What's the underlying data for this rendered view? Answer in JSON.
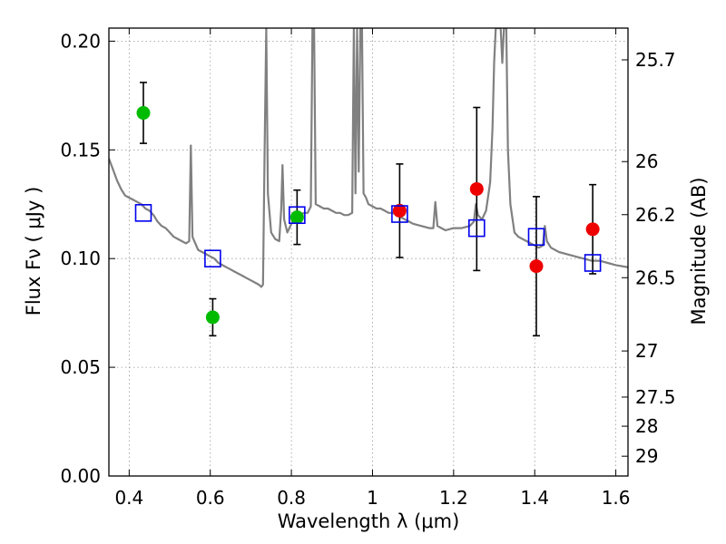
{
  "chart_data": {
    "type": "scatter",
    "xlabel": "Wavelength  λ (μm)",
    "ylabel": "Flux  Fν  ( μJy )",
    "ylabel_right": "Magnitude (AB)",
    "xlim": [
      0.35,
      1.63
    ],
    "ylim": [
      0.0,
      0.206
    ],
    "grid": true,
    "x_ticks": [
      0.4,
      0.6,
      0.8,
      1.0,
      1.2,
      1.4,
      1.6
    ],
    "x_tick_labels": [
      "0.4",
      "0.6",
      "0.8",
      "1",
      "1.2",
      "1.4",
      "1.6"
    ],
    "y_ticks": [
      0.0,
      0.05,
      0.1,
      0.15,
      0.2
    ],
    "y_tick_labels": [
      "0.00",
      "0.05",
      "0.10",
      "0.15",
      "0.20"
    ],
    "right_ticks": [
      {
        "label": "25.7",
        "flux": 0.1914
      },
      {
        "label": "26",
        "flux": 0.1446
      },
      {
        "label": "26.2",
        "flux": 0.1202
      },
      {
        "label": "26.5",
        "flux": 0.0912
      },
      {
        "label": "27",
        "flux": 0.0575
      },
      {
        "label": "27.5",
        "flux": 0.0363
      },
      {
        "label": "28",
        "flux": 0.0229
      },
      {
        "label": "29",
        "flux": 0.0091
      }
    ],
    "colors": {
      "spectrum": "#808080",
      "green": "#00bb00",
      "red": "#ee0000",
      "model": "#0000ee",
      "errorbar": "#000000",
      "grid": "#999999"
    },
    "series": [
      {
        "marker": "circle",
        "color": "#00bb00",
        "points": [
          {
            "x": 0.435,
            "y": 0.167,
            "err": 0.014
          },
          {
            "x": 0.606,
            "y": 0.073,
            "err": 0.0085
          },
          {
            "x": 0.814,
            "y": 0.119,
            "err": 0.0125
          }
        ]
      },
      {
        "marker": "circle",
        "color": "#ee0000",
        "points": [
          {
            "x": 1.067,
            "y": 0.122,
            "err": 0.0215
          },
          {
            "x": 1.257,
            "y": 0.132,
            "err": 0.0375
          },
          {
            "x": 1.404,
            "y": 0.0965,
            "err": 0.032
          },
          {
            "x": 1.543,
            "y": 0.1135,
            "err": 0.0205
          }
        ]
      },
      {
        "marker": "square",
        "color": "#0000ee",
        "points": [
          {
            "x": 0.435,
            "y": 0.121
          },
          {
            "x": 0.606,
            "y": 0.1
          },
          {
            "x": 0.814,
            "y": 0.12
          },
          {
            "x": 1.067,
            "y": 0.1205
          },
          {
            "x": 1.257,
            "y": 0.114
          },
          {
            "x": 1.404,
            "y": 0.11
          },
          {
            "x": 1.543,
            "y": 0.098
          }
        ]
      }
    ],
    "spectrum": [
      [
        0.35,
        0.146
      ],
      [
        0.36,
        0.141
      ],
      [
        0.37,
        0.136
      ],
      [
        0.38,
        0.132
      ],
      [
        0.39,
        0.129
      ],
      [
        0.4,
        0.128
      ],
      [
        0.41,
        0.127
      ],
      [
        0.42,
        0.126
      ],
      [
        0.43,
        0.125
      ],
      [
        0.44,
        0.123
      ],
      [
        0.45,
        0.122
      ],
      [
        0.46,
        0.12
      ],
      [
        0.47,
        0.117
      ],
      [
        0.48,
        0.115
      ],
      [
        0.49,
        0.114
      ],
      [
        0.5,
        0.112
      ],
      [
        0.51,
        0.11
      ],
      [
        0.52,
        0.109
      ],
      [
        0.53,
        0.108
      ],
      [
        0.54,
        0.107
      ],
      [
        0.548,
        0.108
      ],
      [
        0.552,
        0.152
      ],
      [
        0.556,
        0.11
      ],
      [
        0.57,
        0.104
      ],
      [
        0.58,
        0.103
      ],
      [
        0.59,
        0.102
      ],
      [
        0.6,
        0.101
      ],
      [
        0.61,
        0.1
      ],
      [
        0.62,
        0.098
      ],
      [
        0.63,
        0.097
      ],
      [
        0.64,
        0.096
      ],
      [
        0.65,
        0.095
      ],
      [
        0.66,
        0.094
      ],
      [
        0.67,
        0.093
      ],
      [
        0.68,
        0.092
      ],
      [
        0.69,
        0.091
      ],
      [
        0.7,
        0.09
      ],
      [
        0.71,
        0.089
      ],
      [
        0.72,
        0.088
      ],
      [
        0.726,
        0.087
      ],
      [
        0.73,
        0.088
      ],
      [
        0.734,
        0.15
      ],
      [
        0.738,
        0.206
      ],
      [
        0.742,
        0.13
      ],
      [
        0.75,
        0.112
      ],
      [
        0.76,
        0.109
      ],
      [
        0.77,
        0.108
      ],
      [
        0.775,
        0.123
      ],
      [
        0.778,
        0.143
      ],
      [
        0.782,
        0.118
      ],
      [
        0.79,
        0.112
      ],
      [
        0.8,
        0.116
      ],
      [
        0.81,
        0.12
      ],
      [
        0.82,
        0.119
      ],
      [
        0.83,
        0.121
      ],
      [
        0.84,
        0.121
      ],
      [
        0.848,
        0.124
      ],
      [
        0.852,
        0.206
      ],
      [
        0.856,
        0.206
      ],
      [
        0.86,
        0.125
      ],
      [
        0.87,
        0.124
      ],
      [
        0.88,
        0.123
      ],
      [
        0.89,
        0.123
      ],
      [
        0.9,
        0.122
      ],
      [
        0.91,
        0.121
      ],
      [
        0.92,
        0.121
      ],
      [
        0.93,
        0.12
      ],
      [
        0.94,
        0.12
      ],
      [
        0.95,
        0.121
      ],
      [
        0.954,
        0.206
      ],
      [
        0.958,
        0.13
      ],
      [
        0.962,
        0.206
      ],
      [
        0.966,
        0.14
      ],
      [
        0.97,
        0.206
      ],
      [
        0.974,
        0.206
      ],
      [
        0.978,
        0.13
      ],
      [
        0.984,
        0.128
      ],
      [
        0.99,
        0.125
      ],
      [
        1.0,
        0.124
      ],
      [
        1.01,
        0.123
      ],
      [
        1.02,
        0.123
      ],
      [
        1.03,
        0.122
      ],
      [
        1.04,
        0.121
      ],
      [
        1.05,
        0.121
      ],
      [
        1.06,
        0.12
      ],
      [
        1.07,
        0.119
      ],
      [
        1.08,
        0.118
      ],
      [
        1.09,
        0.117
      ],
      [
        1.1,
        0.116
      ],
      [
        1.12,
        0.115
      ],
      [
        1.14,
        0.114
      ],
      [
        1.15,
        0.114
      ],
      [
        1.155,
        0.126
      ],
      [
        1.16,
        0.115
      ],
      [
        1.17,
        0.114
      ],
      [
        1.18,
        0.113
      ],
      [
        1.2,
        0.114
      ],
      [
        1.22,
        0.114
      ],
      [
        1.24,
        0.115
      ],
      [
        1.25,
        0.117
      ],
      [
        1.255,
        0.125
      ],
      [
        1.26,
        0.12
      ],
      [
        1.27,
        0.118
      ],
      [
        1.28,
        0.122
      ],
      [
        1.29,
        0.135
      ],
      [
        1.296,
        0.16
      ],
      [
        1.3,
        0.19
      ],
      [
        1.304,
        0.206
      ],
      [
        1.316,
        0.206
      ],
      [
        1.32,
        0.19
      ],
      [
        1.324,
        0.206
      ],
      [
        1.33,
        0.206
      ],
      [
        1.334,
        0.15
      ],
      [
        1.34,
        0.125
      ],
      [
        1.35,
        0.112
      ],
      [
        1.36,
        0.11
      ],
      [
        1.37,
        0.109
      ],
      [
        1.38,
        0.108
      ],
      [
        1.39,
        0.107
      ],
      [
        1.4,
        0.106
      ],
      [
        1.41,
        0.105
      ],
      [
        1.42,
        0.106
      ],
      [
        1.425,
        0.115
      ],
      [
        1.43,
        0.108
      ],
      [
        1.44,
        0.105
      ],
      [
        1.45,
        0.104
      ],
      [
        1.46,
        0.103
      ],
      [
        1.48,
        0.102
      ],
      [
        1.5,
        0.101
      ],
      [
        1.52,
        0.1
      ],
      [
        1.54,
        0.099
      ],
      [
        1.56,
        0.099
      ],
      [
        1.58,
        0.098
      ],
      [
        1.6,
        0.097
      ],
      [
        1.63,
        0.096
      ]
    ]
  }
}
